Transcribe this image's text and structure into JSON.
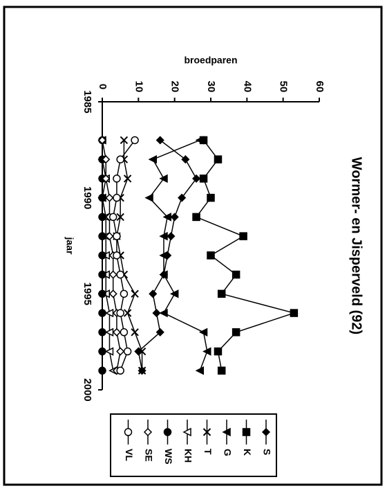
{
  "chart_data": {
    "type": "line",
    "title": "Wormer- en Jisperveld (92)",
    "x_label": "jaar",
    "y_label": "broedparen",
    "x": [
      1987,
      1988,
      1989,
      1990,
      1991,
      1992,
      1993,
      1994,
      1995,
      1996,
      1997,
      1998,
      1999
    ],
    "xlim": [
      1985,
      2000
    ],
    "xticks": [
      1985,
      1990,
      1995,
      2000
    ],
    "ylim": [
      0,
      60
    ],
    "yticks": [
      0,
      10,
      20,
      30,
      40,
      50,
      60
    ],
    "series": [
      {
        "name": "S",
        "color": "#000000",
        "marker": "diamond-filled",
        "values": [
          16,
          23,
          26,
          22,
          20,
          19,
          18,
          17,
          14,
          15,
          16,
          10,
          11
        ]
      },
      {
        "name": "K",
        "color": "#000000",
        "marker": "square-filled",
        "values": [
          28,
          32,
          28,
          30,
          26,
          39,
          30,
          37,
          33,
          53,
          37,
          32,
          33
        ]
      },
      {
        "name": "G",
        "color": "#000000",
        "marker": "triangle-filled",
        "values": [
          27,
          14,
          17,
          13,
          18,
          17,
          17,
          17,
          20,
          17,
          28,
          29,
          27
        ]
      },
      {
        "name": "T",
        "color": "#000000",
        "marker": "cross",
        "values": [
          6,
          6,
          7,
          5,
          5,
          4,
          5,
          6,
          9,
          7,
          9,
          11,
          11
        ]
      },
      {
        "name": "KH",
        "color": "#000000",
        "marker": "triangle-open",
        "values": [
          0,
          0,
          1,
          0,
          1,
          1,
          1,
          1,
          1,
          2,
          2,
          2,
          3
        ]
      },
      {
        "name": "WS",
        "color": "#000000",
        "marker": "circle-filled",
        "values": [
          0,
          0,
          0,
          0,
          0,
          0,
          0,
          0,
          0,
          0,
          0,
          0,
          0
        ]
      },
      {
        "name": "SE",
        "color": "#000000",
        "marker": "diamond-open",
        "values": [
          0,
          1,
          1,
          2,
          2,
          2,
          3,
          3,
          3,
          4,
          4,
          5,
          4
        ]
      },
      {
        "name": "VL",
        "color": "#000000",
        "marker": "circle-open",
        "values": [
          9,
          5,
          4,
          4,
          3,
          4,
          4,
          5,
          6,
          5,
          6,
          7,
          5
        ]
      }
    ]
  }
}
